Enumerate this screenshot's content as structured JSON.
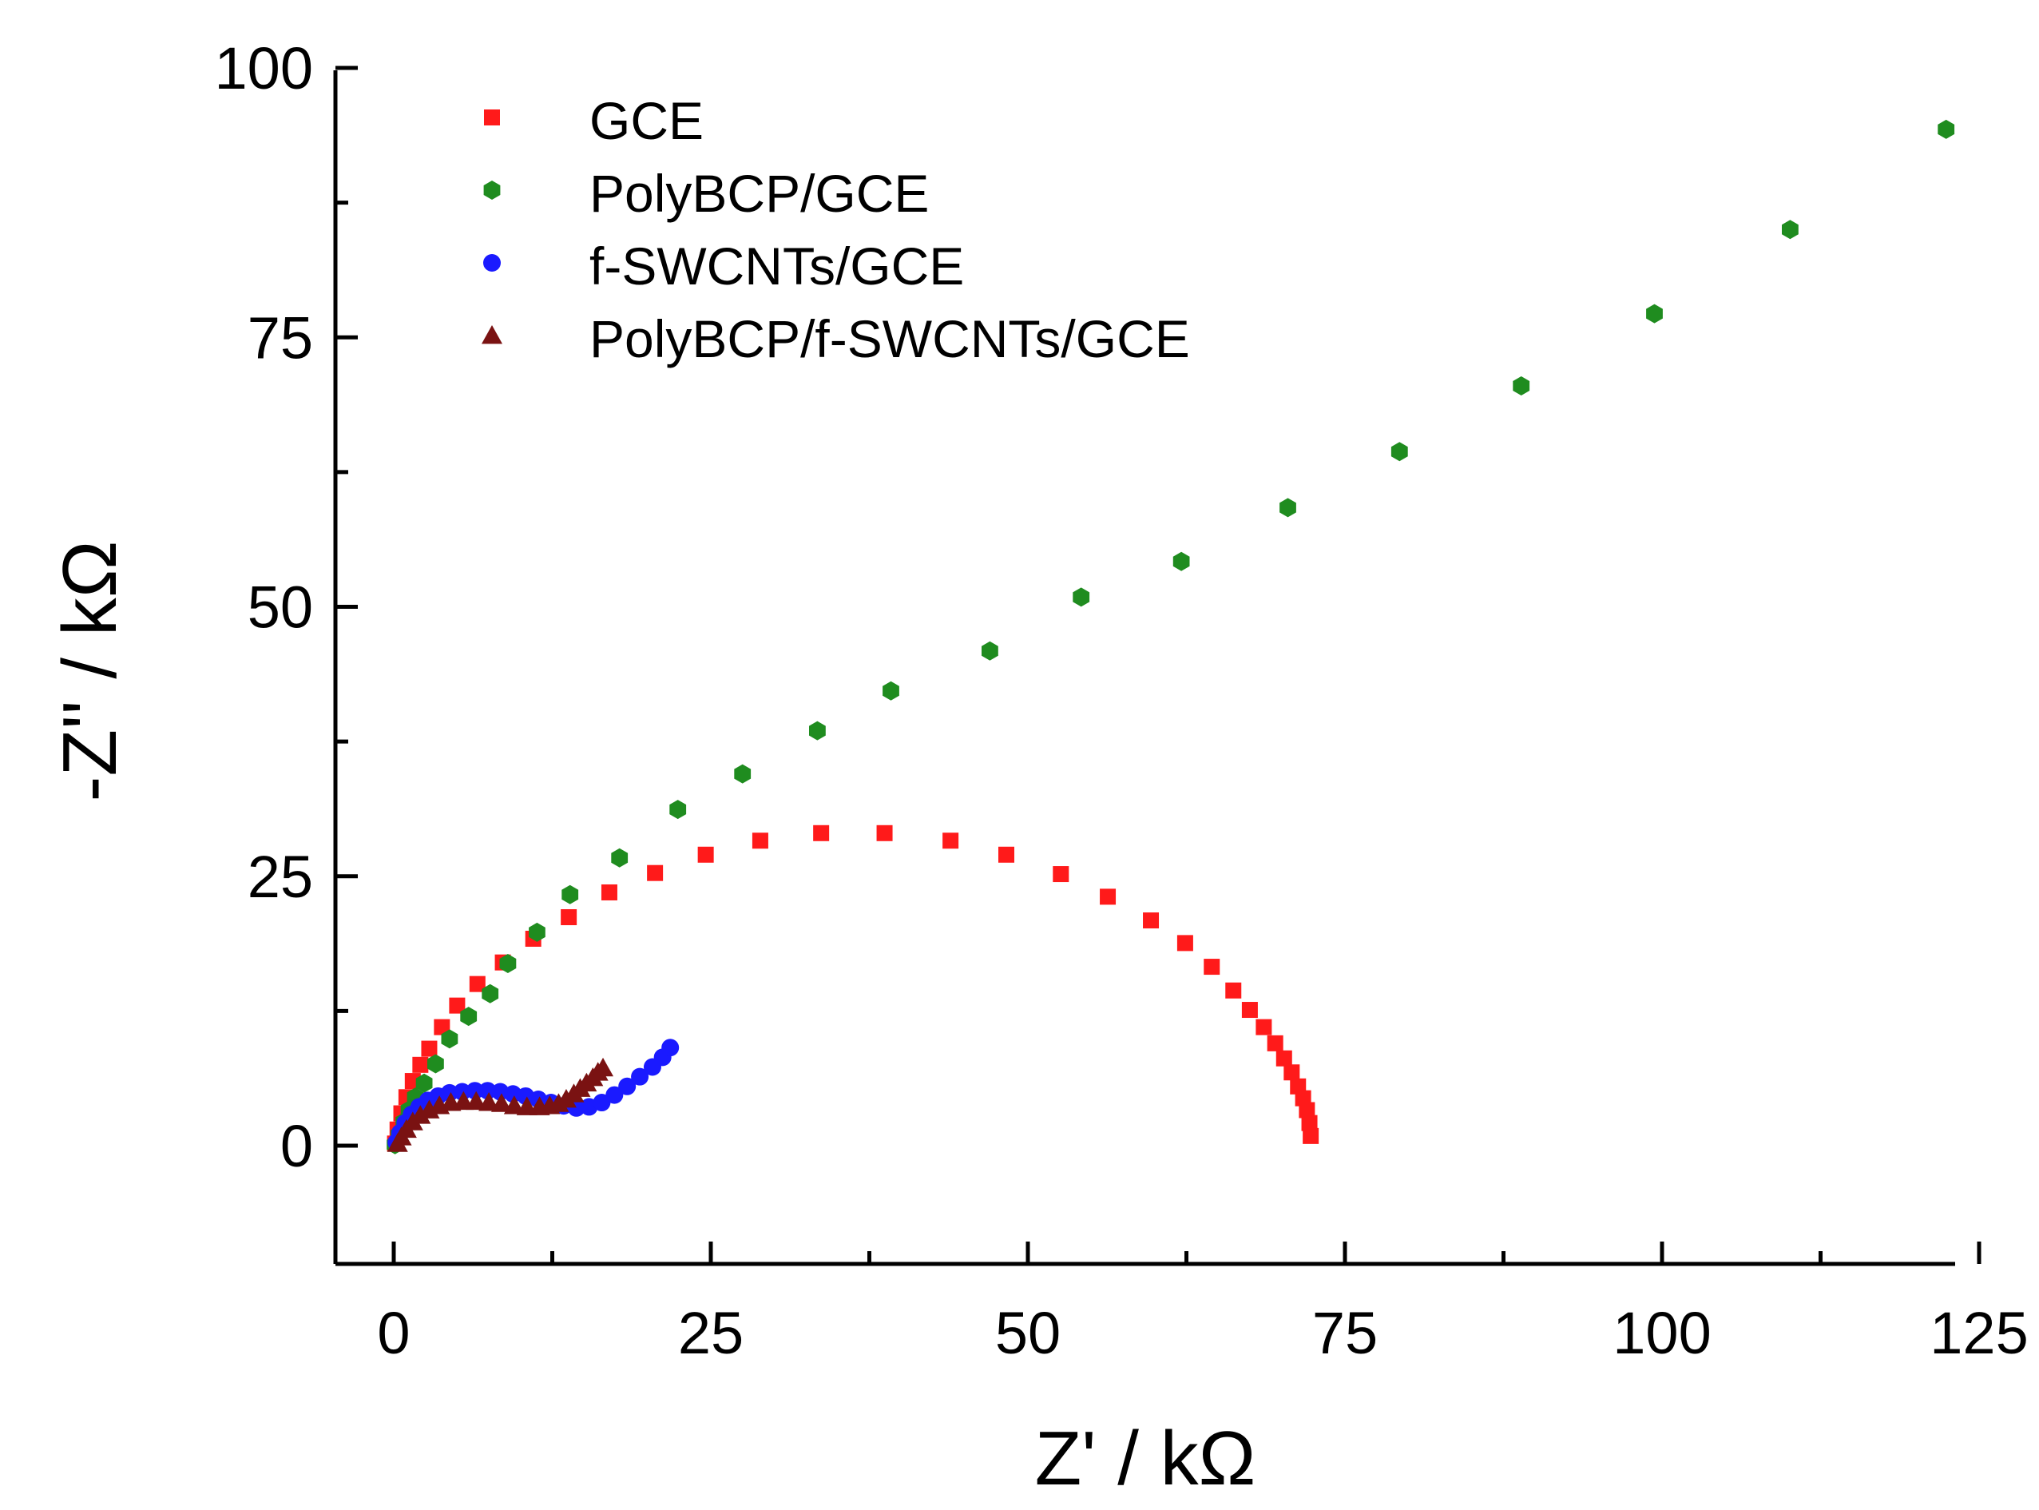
{
  "chart_data": {
    "type": "scatter",
    "title": "",
    "xlabel": "Z' / kΩ",
    "ylabel": "-Z'' / kΩ",
    "xlim": [
      -5,
      125
    ],
    "ylim": [
      -10,
      100
    ],
    "xticks": [
      0,
      25,
      50,
      75,
      100,
      125
    ],
    "yticks": [
      0,
      25,
      50,
      75,
      100
    ],
    "xtick_labels": [
      "0",
      "25",
      "50",
      "75",
      "100",
      "125"
    ],
    "ytick_labels": [
      "0",
      "25",
      "50",
      "75",
      "100"
    ],
    "grid": false,
    "legend_position": "top-left",
    "series": [
      {
        "name": "GCE",
        "marker": "square",
        "color": "#ff1a1a",
        "x": [
          0.1,
          0.3,
          0.6,
          1.0,
          1.5,
          2.1,
          2.8,
          3.8,
          5.0,
          6.6,
          8.6,
          11.0,
          13.8,
          17.0,
          20.6,
          24.6,
          28.9,
          33.7,
          38.7,
          43.9,
          48.3,
          52.6,
          56.3,
          59.7,
          62.4,
          64.5,
          66.2,
          67.5,
          68.6,
          69.5,
          70.2,
          70.8,
          71.3,
          71.7,
          72.0,
          72.2,
          72.3
        ],
        "y": [
          0.2,
          1.5,
          3.0,
          4.5,
          6.0,
          7.5,
          9.0,
          11.0,
          13.0,
          15.0,
          17.0,
          19.2,
          21.2,
          23.5,
          25.3,
          27.0,
          28.3,
          29.0,
          29.0,
          28.3,
          27.0,
          25.2,
          23.1,
          20.9,
          18.8,
          16.6,
          14.4,
          12.6,
          11.0,
          9.5,
          8.1,
          6.8,
          5.5,
          4.4,
          3.3,
          2.1,
          0.9
        ]
      },
      {
        "name": "PolyBCP/GCE",
        "marker": "hexagon",
        "color": "#1f8c1f",
        "x": [
          0.1,
          0.4,
          0.8,
          1.2,
          1.7,
          2.4,
          3.3,
          4.4,
          5.9,
          7.6,
          9.0,
          11.3,
          13.9,
          17.8,
          22.4,
          27.5,
          33.4,
          39.2,
          47.0,
          54.2,
          62.1,
          70.5,
          79.3,
          88.9,
          99.4,
          110.1,
          122.4
        ],
        "y": [
          0.1,
          1.0,
          2.2,
          3.3,
          4.5,
          5.8,
          7.6,
          9.9,
          12.0,
          14.1,
          16.9,
          19.8,
          23.3,
          26.7,
          31.2,
          34.5,
          38.5,
          42.2,
          45.9,
          50.9,
          54.2,
          59.2,
          64.4,
          70.5,
          77.2,
          85.0,
          94.3
        ],
        "x_tail_start": 0.1
      },
      {
        "name": "f-SWCNTs/GCE",
        "marker": "circle",
        "color": "#1a1aff",
        "x": [
          0.2,
          0.5,
          0.9,
          1.4,
          2.0,
          2.7,
          3.5,
          4.4,
          5.4,
          6.4,
          7.4,
          8.4,
          9.4,
          10.4,
          11.4,
          12.4,
          13.4,
          14.4,
          15.4,
          16.4,
          17.4,
          18.4,
          19.4,
          20.4,
          21.2,
          21.8
        ],
        "y": [
          0.3,
          1.2,
          2.1,
          2.9,
          3.6,
          4.2,
          4.6,
          4.9,
          5.0,
          5.1,
          5.1,
          5.0,
          4.8,
          4.6,
          4.3,
          4.0,
          3.7,
          3.5,
          3.6,
          4.0,
          4.7,
          5.5,
          6.4,
          7.3,
          8.2,
          9.1
        ]
      },
      {
        "name": "PolyBCP/f-SWCNTs/GCE",
        "marker": "triangle",
        "color": "#7a1212",
        "x": [
          0.3,
          0.6,
          1.0,
          1.5,
          2.1,
          2.8,
          3.6,
          4.5,
          5.5,
          6.5,
          7.5,
          8.5,
          9.5,
          10.5,
          11.5,
          12.3,
          13.0,
          13.6,
          14.2,
          14.7,
          15.2,
          15.7,
          16.1,
          16.5
        ],
        "y": [
          0.2,
          0.8,
          1.5,
          2.2,
          2.8,
          3.3,
          3.7,
          4.0,
          4.1,
          4.1,
          4.0,
          3.9,
          3.7,
          3.6,
          3.6,
          3.7,
          3.9,
          4.3,
          4.8,
          5.3,
          5.8,
          6.3,
          6.8,
          7.2
        ]
      }
    ]
  }
}
